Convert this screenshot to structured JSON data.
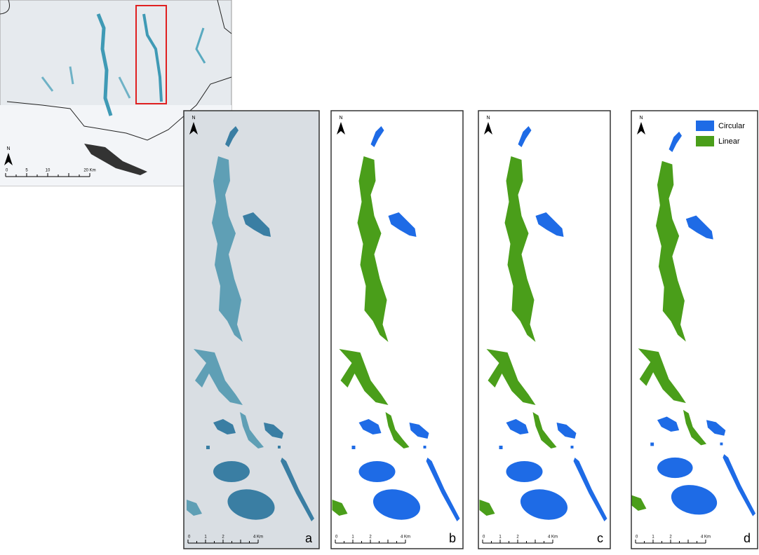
{
  "overview": {
    "north": "N",
    "scale": [
      "0",
      "5",
      "10",
      "20 Km"
    ]
  },
  "panels": [
    {
      "letter": "a",
      "north": "N",
      "scale": [
        "0",
        "1",
        "2",
        "4 Km"
      ]
    },
    {
      "letter": "b",
      "north": "N",
      "scale": [
        "0",
        "1",
        "2",
        "4 Km"
      ]
    },
    {
      "letter": "c",
      "north": "N",
      "scale": [
        "0",
        "1",
        "2",
        "4 Km"
      ]
    },
    {
      "letter": "d",
      "north": "N",
      "scale": [
        "0",
        "1",
        "2",
        "4 Km"
      ]
    }
  ],
  "legend": [
    {
      "label": "Circular",
      "color": "#1e6be6"
    },
    {
      "label": "Linear",
      "color": "#4a9e1a"
    }
  ]
}
